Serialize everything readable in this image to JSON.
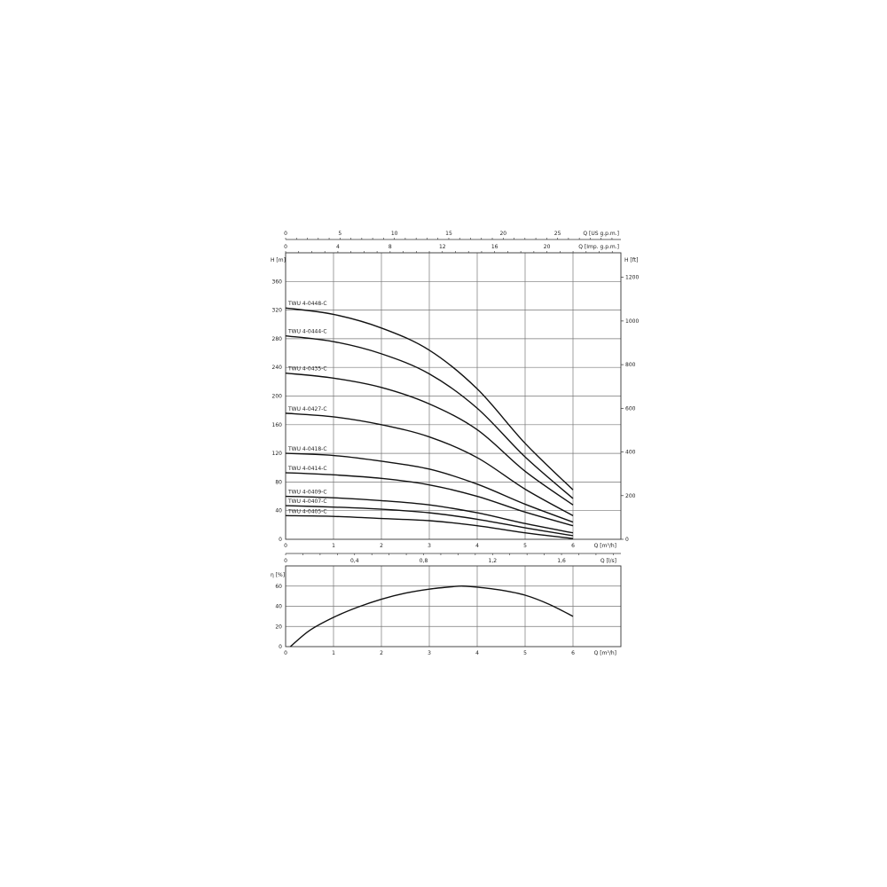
{
  "chart_data": [
    {
      "type": "line",
      "title": "",
      "xlabel": "Q [m³/h]",
      "ylabel": "H [m]",
      "y2label": "H [ft]",
      "xlim": [
        0,
        7
      ],
      "ylim": [
        0,
        400
      ],
      "x_ticks": [
        0,
        1,
        2,
        3,
        4,
        5,
        6
      ],
      "y_ticks": [
        0,
        40,
        80,
        120,
        160,
        200,
        240,
        280,
        320,
        360
      ],
      "y2_ticks": [
        0,
        200,
        400,
        600,
        800,
        1000,
        1200
      ],
      "top_axes": [
        {
          "label": "Q [US g.p.m.]",
          "ticks": [
            0,
            5,
            10,
            15,
            20,
            25
          ]
        },
        {
          "label": "Q [Imp. g.p.m.]",
          "ticks": [
            0,
            4,
            8,
            12,
            16,
            20
          ]
        }
      ],
      "bottom_axis2": {
        "label": "Q [l/s]",
        "ticks": [
          "0",
          "0,4",
          "0,8",
          "1,2",
          "1,6"
        ],
        "values": [
          0,
          0.4,
          0.8,
          1.2,
          1.6
        ]
      },
      "grid": true,
      "x": [
        0,
        1,
        2,
        3,
        4,
        5,
        6
      ],
      "series": [
        {
          "name": "TWU 4-0448-C",
          "values": [
            323,
            314,
            295,
            264,
            210,
            134,
            69
          ]
        },
        {
          "name": "TWU 4-0444-C",
          "values": [
            284,
            276,
            259,
            231,
            183,
            115,
            57
          ]
        },
        {
          "name": "TWU 4-0435-C",
          "values": [
            232,
            225,
            212,
            189,
            153,
            95,
            48
          ]
        },
        {
          "name": "TWU 4-0427-C",
          "values": [
            176,
            171,
            160,
            143,
            114,
            70,
            33
          ]
        },
        {
          "name": "TWU 4-0418-C",
          "values": [
            120,
            117,
            109,
            98,
            77,
            49,
            24
          ]
        },
        {
          "name": "TWU 4-0414-C",
          "values": [
            93,
            90,
            85,
            76,
            60,
            38,
            19
          ]
        },
        {
          "name": "TWU 4-0409-C",
          "values": [
            60,
            58,
            54,
            48,
            37,
            22,
            9
          ]
        },
        {
          "name": "TWU 4-0407-C",
          "values": [
            47,
            45,
            42,
            37,
            28,
            16,
            5
          ]
        },
        {
          "name": "TWU 4-0405-C",
          "values": [
            33,
            32,
            29,
            26,
            19,
            9,
            1
          ]
        }
      ]
    },
    {
      "type": "line",
      "title": "",
      "xlabel": "Q [m³/h]",
      "ylabel": "η [%]",
      "xlim": [
        0,
        7
      ],
      "ylim": [
        0,
        80
      ],
      "x_ticks": [
        0,
        1,
        2,
        3,
        4,
        5,
        6
      ],
      "y_ticks": [
        0,
        20,
        40,
        60
      ],
      "grid": true,
      "x": [
        0.1,
        0.5,
        1,
        1.5,
        2,
        2.5,
        3,
        3.5,
        3.7,
        4,
        4.5,
        5,
        5.5,
        6
      ],
      "values": [
        0,
        16,
        29,
        39,
        47,
        53,
        57,
        59.5,
        60,
        59,
        56,
        51,
        42,
        30
      ]
    }
  ]
}
